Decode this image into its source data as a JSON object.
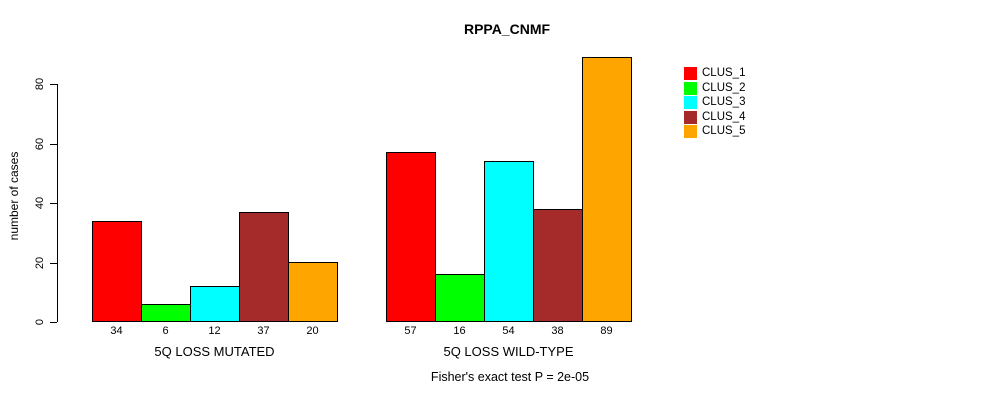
{
  "chart_data": {
    "type": "bar",
    "title": "RPPA_CNMF",
    "ylabel": "number of cases",
    "xlabel": "",
    "annotation": "Fisher's exact test P = 2e-05",
    "yticks": [
      0,
      20,
      40,
      60,
      80
    ],
    "ylim": [
      0,
      89
    ],
    "grid": false,
    "legend_position": "right",
    "categories": [
      "5Q LOSS MUTATED",
      "5Q LOSS WILD-TYPE"
    ],
    "series": [
      {
        "name": "CLUS_1",
        "color": "#FF0000",
        "values": [
          34,
          57
        ]
      },
      {
        "name": "CLUS_2",
        "color": "#00FF00",
        "values": [
          6,
          16
        ]
      },
      {
        "name": "CLUS_3",
        "color": "#00FFFF",
        "values": [
          12,
          54
        ]
      },
      {
        "name": "CLUS_4",
        "color": "#A52A2A",
        "values": [
          37,
          38
        ]
      },
      {
        "name": "CLUS_5",
        "color": "#FFA500",
        "values": [
          20,
          89
        ]
      }
    ],
    "bar_value_labels_shown": true
  }
}
